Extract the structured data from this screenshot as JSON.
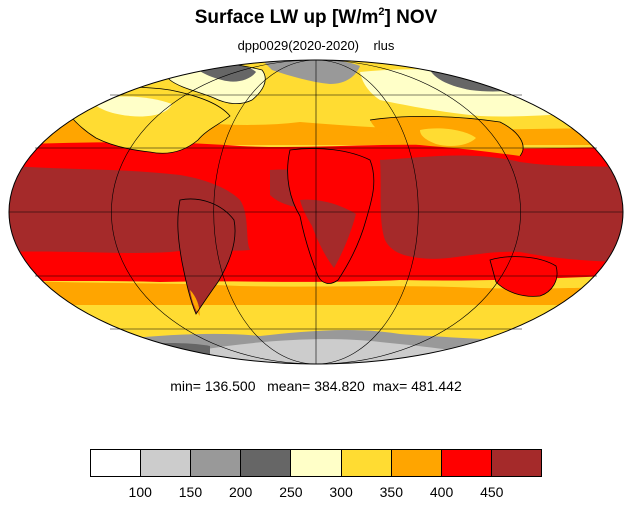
{
  "title": {
    "main": "Surface LW up [W/m",
    "sup": "2",
    "after": "]  NOV"
  },
  "subtitle": "dpp0029(2020-2020)    rlus",
  "stats": "min= 136.500   mean= 384.820  max= 481.442",
  "legend": {
    "colors": [
      "#ffffff",
      "#cccccc",
      "#999999",
      "#666666",
      "#ffffc8",
      "#ffdc32",
      "#ffa500",
      "#ff0000",
      "#a52a2a"
    ],
    "ticks": [
      "100",
      "150",
      "200",
      "250",
      "300",
      "350",
      "400",
      "450"
    ]
  },
  "map": {
    "projection": "mollweide",
    "palette": {
      "dark_red": "#a52a2a",
      "red": "#ff0000",
      "orange": "#ffa500",
      "yellow": "#ffdc32",
      "pale": "#ffffc8",
      "dark_gray": "#666666",
      "gray": "#999999",
      "light_gray": "#cccccc"
    }
  }
}
